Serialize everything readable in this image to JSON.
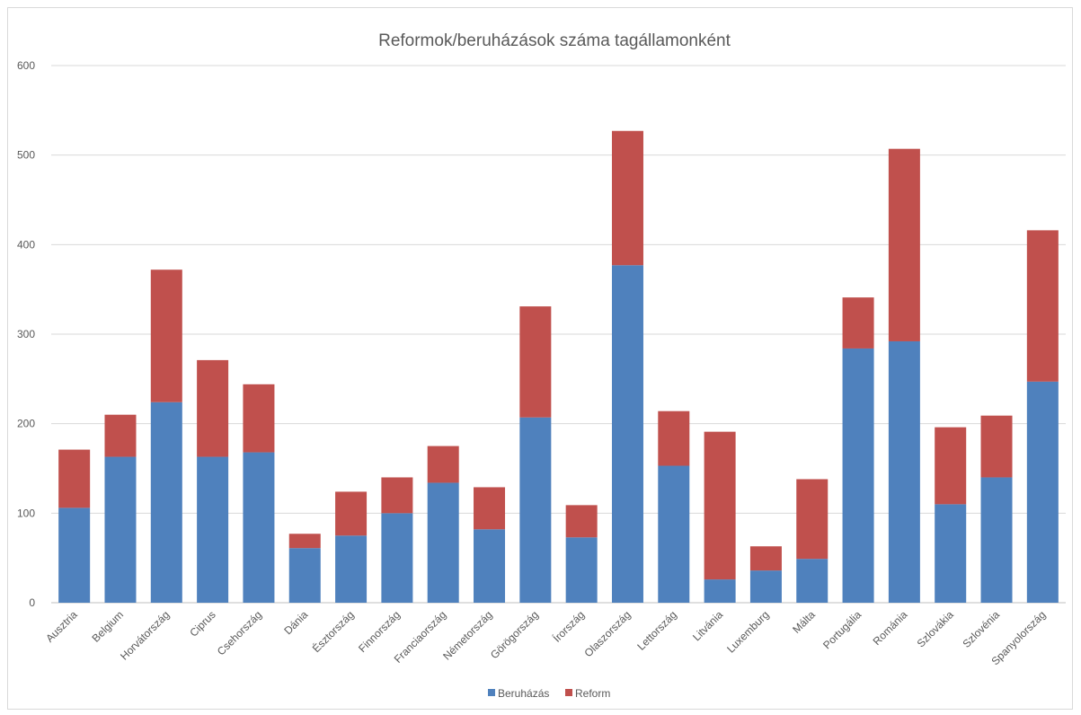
{
  "chart_data": {
    "type": "bar",
    "stacked": true,
    "title": "Reformok/beruházások száma tagállamonként",
    "xlabel": "",
    "ylabel": "",
    "ylim": [
      0,
      600
    ],
    "yticks": [
      0,
      100,
      200,
      300,
      400,
      500,
      600
    ],
    "grid": true,
    "legend_position": "bottom",
    "categories": [
      "Ausztria",
      "Belgium",
      "Horvátország",
      "Ciprus",
      "Csehország",
      "Dánia",
      "Észtország",
      "Finnország",
      "Franciaország",
      "Németország",
      "Görögország",
      "Írország",
      "Olaszország",
      "Lettország",
      "Litvánia",
      "Luxemburg",
      "Málta",
      "Portugália",
      "Románia",
      "Szlovákia",
      "Szlovénia",
      "Spanyolország"
    ],
    "series": [
      {
        "name": "Beruházás",
        "color": "#4f81bd",
        "values": [
          106,
          163,
          224,
          163,
          168,
          61,
          75,
          100,
          134,
          82,
          207,
          73,
          377,
          153,
          26,
          36,
          49,
          284,
          292,
          110,
          140,
          247
        ]
      },
      {
        "name": "Reform",
        "color": "#c0504d",
        "values": [
          65,
          47,
          148,
          108,
          76,
          16,
          49,
          40,
          41,
          47,
          124,
          36,
          150,
          61,
          165,
          27,
          89,
          57,
          215,
          86,
          69,
          169
        ]
      }
    ]
  }
}
